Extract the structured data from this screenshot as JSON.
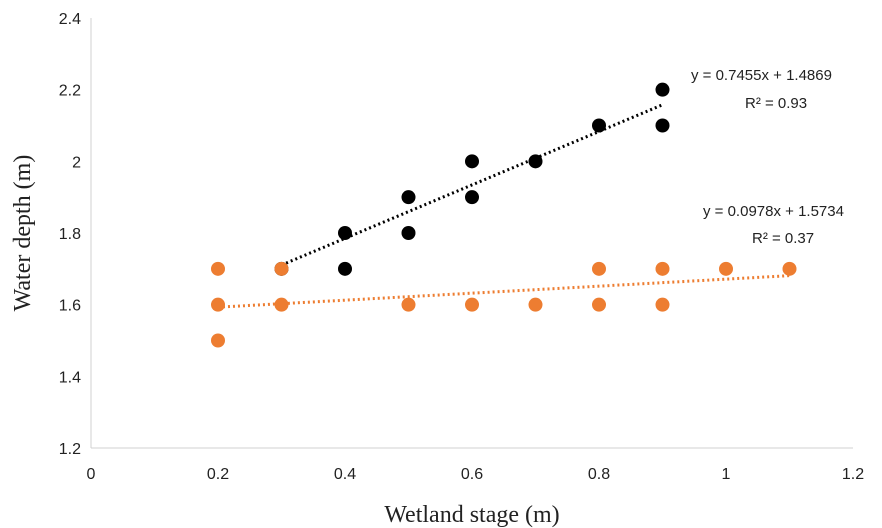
{
  "chart_data": {
    "type": "scatter",
    "title": "",
    "xlabel": "Wetland stage (m)",
    "ylabel": "Water depth (m)",
    "xlim": [
      0,
      1.2
    ],
    "ylim": [
      1.2,
      2.4
    ],
    "x_ticks": [
      "0",
      "0.2",
      "0.4",
      "0.6",
      "0.8",
      "1",
      "1.2"
    ],
    "y_ticks": [
      "1.2",
      "1.4",
      "1.6",
      "1.8",
      "2",
      "2.2",
      "2.4"
    ],
    "grid": false,
    "legend": "none",
    "series": [
      {
        "color": "#000000",
        "points": [
          [
            0.3,
            1.7
          ],
          [
            0.4,
            1.8
          ],
          [
            0.4,
            1.7
          ],
          [
            0.5,
            1.9
          ],
          [
            0.5,
            1.8
          ],
          [
            0.6,
            2.0
          ],
          [
            0.6,
            1.9
          ],
          [
            0.7,
            2.0
          ],
          [
            0.8,
            2.1
          ],
          [
            0.9,
            2.2
          ],
          [
            0.9,
            2.1
          ]
        ],
        "trendline": {
          "slope": 0.7455,
          "intercept": 1.4869,
          "x_range": [
            0.3,
            0.9
          ],
          "equation": "y = 0.7455x + 1.4869",
          "r2": "R² = 0.93"
        }
      },
      {
        "color": "#ED7D31",
        "points": [
          [
            0.2,
            1.7
          ],
          [
            0.2,
            1.6
          ],
          [
            0.2,
            1.5
          ],
          [
            0.3,
            1.7
          ],
          [
            0.3,
            1.6
          ],
          [
            0.5,
            1.6
          ],
          [
            0.6,
            1.6
          ],
          [
            0.7,
            1.6
          ],
          [
            0.8,
            1.7
          ],
          [
            0.8,
            1.6
          ],
          [
            0.9,
            1.7
          ],
          [
            0.9,
            1.6
          ],
          [
            1.0,
            1.7
          ],
          [
            1.1,
            1.7
          ]
        ],
        "trendline": {
          "slope": 0.0978,
          "intercept": 1.5734,
          "x_range": [
            0.2,
            1.1
          ],
          "equation": "y = 0.0978x + 1.5734",
          "r2": "R² = 0.37"
        }
      }
    ]
  }
}
